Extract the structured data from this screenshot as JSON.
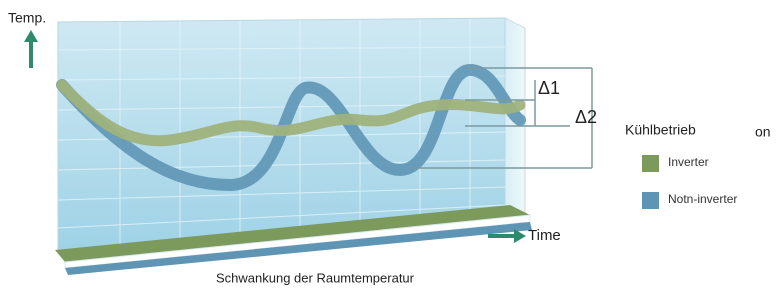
{
  "axes": {
    "y_label": "Temp.",
    "x_label": "Time"
  },
  "annotations": {
    "delta1": "Δ1",
    "delta2": "Δ2"
  },
  "legend": {
    "title": "Kühlbetrieb",
    "title_overflow": "on",
    "items": [
      {
        "label": "Inverter",
        "color": "#7c9a5c"
      },
      {
        "label": "Notn-inverter",
        "color": "#5e95b5"
      }
    ]
  },
  "caption": "Schwankung der Raumtemperatur"
}
